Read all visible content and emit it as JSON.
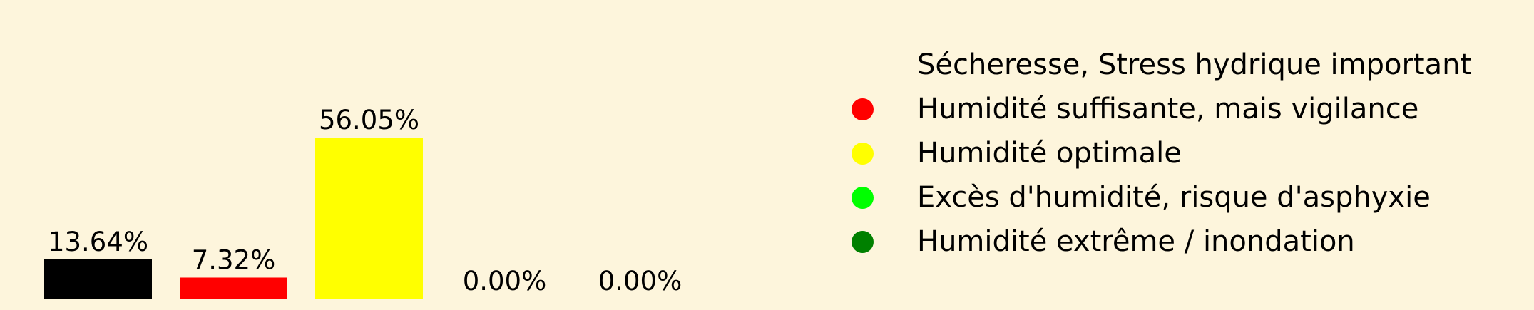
{
  "chart_data": {
    "type": "bar",
    "categories": [
      "Sécheresse, Stress hydrique important",
      "Humidité suffisante, mais vigilance",
      "Humidité optimale",
      "Excès d'humidité, risque d'asphyxie",
      "Humidité extrême / inondation"
    ],
    "values": [
      13.64,
      7.32,
      56.05,
      0.0,
      0.0
    ],
    "value_labels": [
      "13.64%",
      "7.32%",
      "56.05%",
      "0.00%",
      "0.00%"
    ],
    "colors": [
      "#000000",
      "#ff0000",
      "#ffff00",
      "#00ff00",
      "#008000"
    ],
    "legend": {
      "placement": "right",
      "items": [
        {
          "label": "Sécheresse, Stress hydrique important",
          "color": "#000000"
        },
        {
          "label": "Humidité suffisante, mais vigilance",
          "color": "#ff0000"
        },
        {
          "label": "Humidité optimale",
          "color": "#ffff00"
        },
        {
          "label": "Excès d'humidité, risque d'asphyxie",
          "color": "#00ff00"
        },
        {
          "label": "Humidité extrême / inondation",
          "color": "#008000"
        }
      ]
    },
    "title": "",
    "xlabel": "",
    "ylabel": "",
    "ylim": [
      0,
      56.05
    ],
    "grid": false,
    "background_color": "#fdf5dc"
  }
}
